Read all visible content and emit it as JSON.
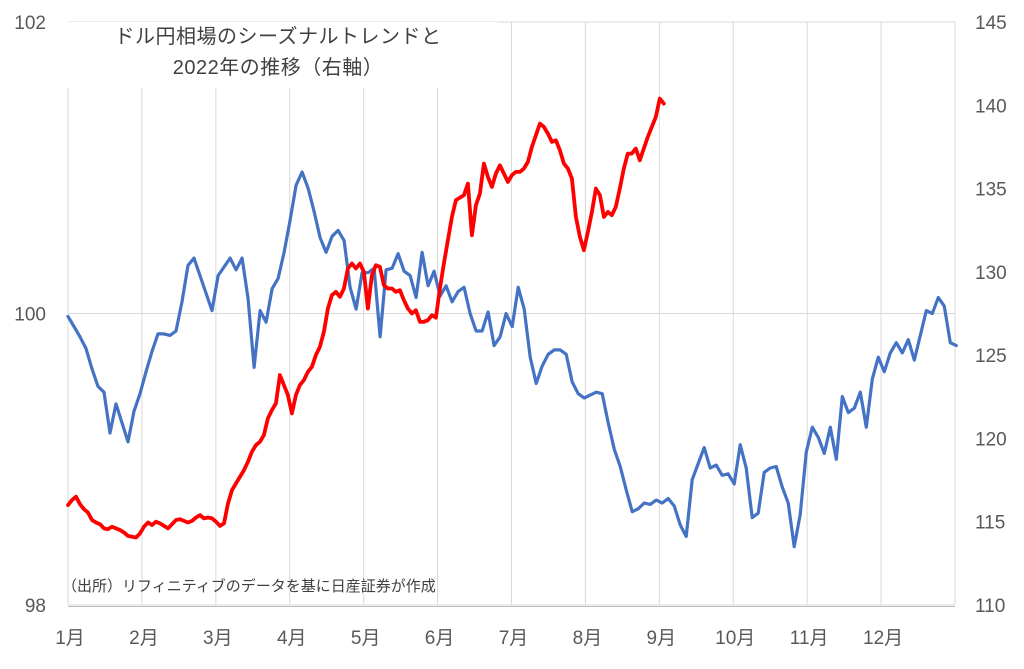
{
  "chart_data": {
    "type": "line",
    "title_lines": [
      "ドル円相場のシーズナルトレンドと",
      "2022年の推移（右軸）"
    ],
    "source_note": "（出所）リフィニティブのデータを基に日産証券が作成",
    "x_axis": {
      "labels": [
        "1月",
        "2月",
        "3月",
        "4月",
        "5月",
        "6月",
        "7月",
        "8月",
        "9月",
        "10月",
        "11月",
        "12月"
      ],
      "range": [
        0,
        12
      ],
      "gridlines_every_month": true
    },
    "left_axis": {
      "range": [
        98,
        102
      ],
      "ticks": [
        98,
        100,
        102
      ]
    },
    "right_axis": {
      "range": [
        110,
        145
      ],
      "ticks": [
        110,
        115,
        120,
        125,
        130,
        135,
        140,
        145
      ]
    },
    "grid_color": "#D9D9D9",
    "tick_label_color": "#595959",
    "legend": "none",
    "series": [
      {
        "id": "seasonal-trend",
        "axis": "left",
        "color": "#4472C4",
        "width": 3.2,
        "x_start": 0,
        "x_step": 0.0812,
        "values": [
          99.98,
          99.91,
          99.84,
          99.76,
          99.62,
          99.5,
          99.46,
          99.18,
          99.38,
          99.25,
          99.12,
          99.33,
          99.45,
          99.6,
          99.74,
          99.86,
          99.86,
          99.85,
          99.88,
          100.08,
          100.33,
          100.38,
          100.26,
          100.14,
          100.02,
          100.26,
          100.32,
          100.38,
          100.3,
          100.38,
          100.1,
          99.63,
          100.02,
          99.94,
          100.17,
          100.24,
          100.42,
          100.64,
          100.88,
          100.97,
          100.86,
          100.7,
          100.52,
          100.42,
          100.53,
          100.57,
          100.5,
          100.18,
          100.03,
          100.28,
          100.28,
          100.31,
          99.84,
          100.3,
          100.31,
          100.41,
          100.29,
          100.26,
          100.11,
          100.42,
          100.19,
          100.29,
          100.12,
          100.19,
          100.08,
          100.15,
          100.18,
          100.0,
          99.88,
          99.88,
          100.01,
          99.78,
          99.84,
          100.0,
          99.91,
          100.18,
          100.03,
          99.7,
          99.52,
          99.64,
          99.72,
          99.75,
          99.75,
          99.72,
          99.53,
          99.45,
          99.42,
          99.44,
          99.46,
          99.45,
          99.25,
          99.07,
          98.95,
          98.79,
          98.64,
          98.66,
          98.7,
          98.69,
          98.72,
          98.7,
          98.73,
          98.68,
          98.55,
          98.47,
          98.86,
          98.97,
          99.08,
          98.94,
          98.96,
          98.89,
          98.9,
          98.83,
          99.1,
          98.94,
          98.6,
          98.63,
          98.91,
          98.94,
          98.95,
          98.81,
          98.7,
          98.4,
          98.62,
          99.05,
          99.22,
          99.15,
          99.04,
          99.22,
          99.0,
          99.43,
          99.32,
          99.35,
          99.46,
          99.22,
          99.55,
          99.7,
          99.6,
          99.73,
          99.8,
          99.73,
          99.82,
          99.68,
          99.85,
          100.02,
          100.0,
          100.11,
          100.05,
          99.8,
          99.78
        ]
      },
      {
        "id": "usdjpy-2022",
        "axis": "right",
        "color": "#FF0000",
        "width": 3.8,
        "x_start": 0,
        "x_step": 0.0541,
        "values": [
          116.0,
          116.3,
          116.5,
          116.05,
          115.75,
          115.55,
          115.1,
          114.95,
          114.85,
          114.6,
          114.55,
          114.7,
          114.6,
          114.5,
          114.35,
          114.15,
          114.1,
          114.05,
          114.3,
          114.7,
          114.95,
          114.8,
          115.0,
          114.9,
          114.75,
          114.6,
          114.85,
          115.1,
          115.15,
          115.05,
          114.95,
          115.05,
          115.25,
          115.4,
          115.2,
          115.25,
          115.2,
          115.0,
          114.75,
          114.9,
          116.1,
          116.9,
          117.3,
          117.7,
          118.1,
          118.6,
          119.2,
          119.6,
          119.8,
          120.2,
          121.2,
          121.7,
          122.1,
          123.8,
          123.2,
          122.6,
          121.5,
          122.6,
          123.2,
          123.5,
          124.0,
          124.3,
          125.0,
          125.5,
          126.4,
          127.8,
          128.6,
          128.8,
          128.5,
          129.0,
          130.2,
          130.5,
          130.2,
          130.5,
          130.0,
          127.8,
          129.8,
          130.4,
          130.3,
          129.2,
          129.0,
          129.0,
          128.8,
          128.9,
          128.3,
          127.8,
          127.5,
          127.7,
          127.0,
          127.0,
          127.1,
          127.4,
          127.25,
          129.0,
          130.5,
          131.9,
          133.3,
          134.3,
          134.45,
          134.6,
          135.3,
          132.2,
          134.0,
          134.7,
          136.5,
          135.7,
          135.1,
          135.9,
          136.4,
          135.9,
          135.4,
          135.8,
          136.0,
          136.0,
          136.2,
          136.6,
          137.5,
          138.2,
          138.9,
          138.7,
          138.3,
          137.8,
          137.9,
          137.3,
          136.5,
          136.2,
          135.6,
          133.3,
          132.1,
          131.3,
          132.4,
          133.6,
          135.0,
          134.6,
          133.3,
          133.6,
          133.4,
          133.9,
          135.0,
          136.2,
          137.1,
          137.1,
          137.4,
          136.7,
          137.4,
          138.1,
          138.7,
          139.3,
          140.4,
          140.1
        ]
      }
    ]
  }
}
